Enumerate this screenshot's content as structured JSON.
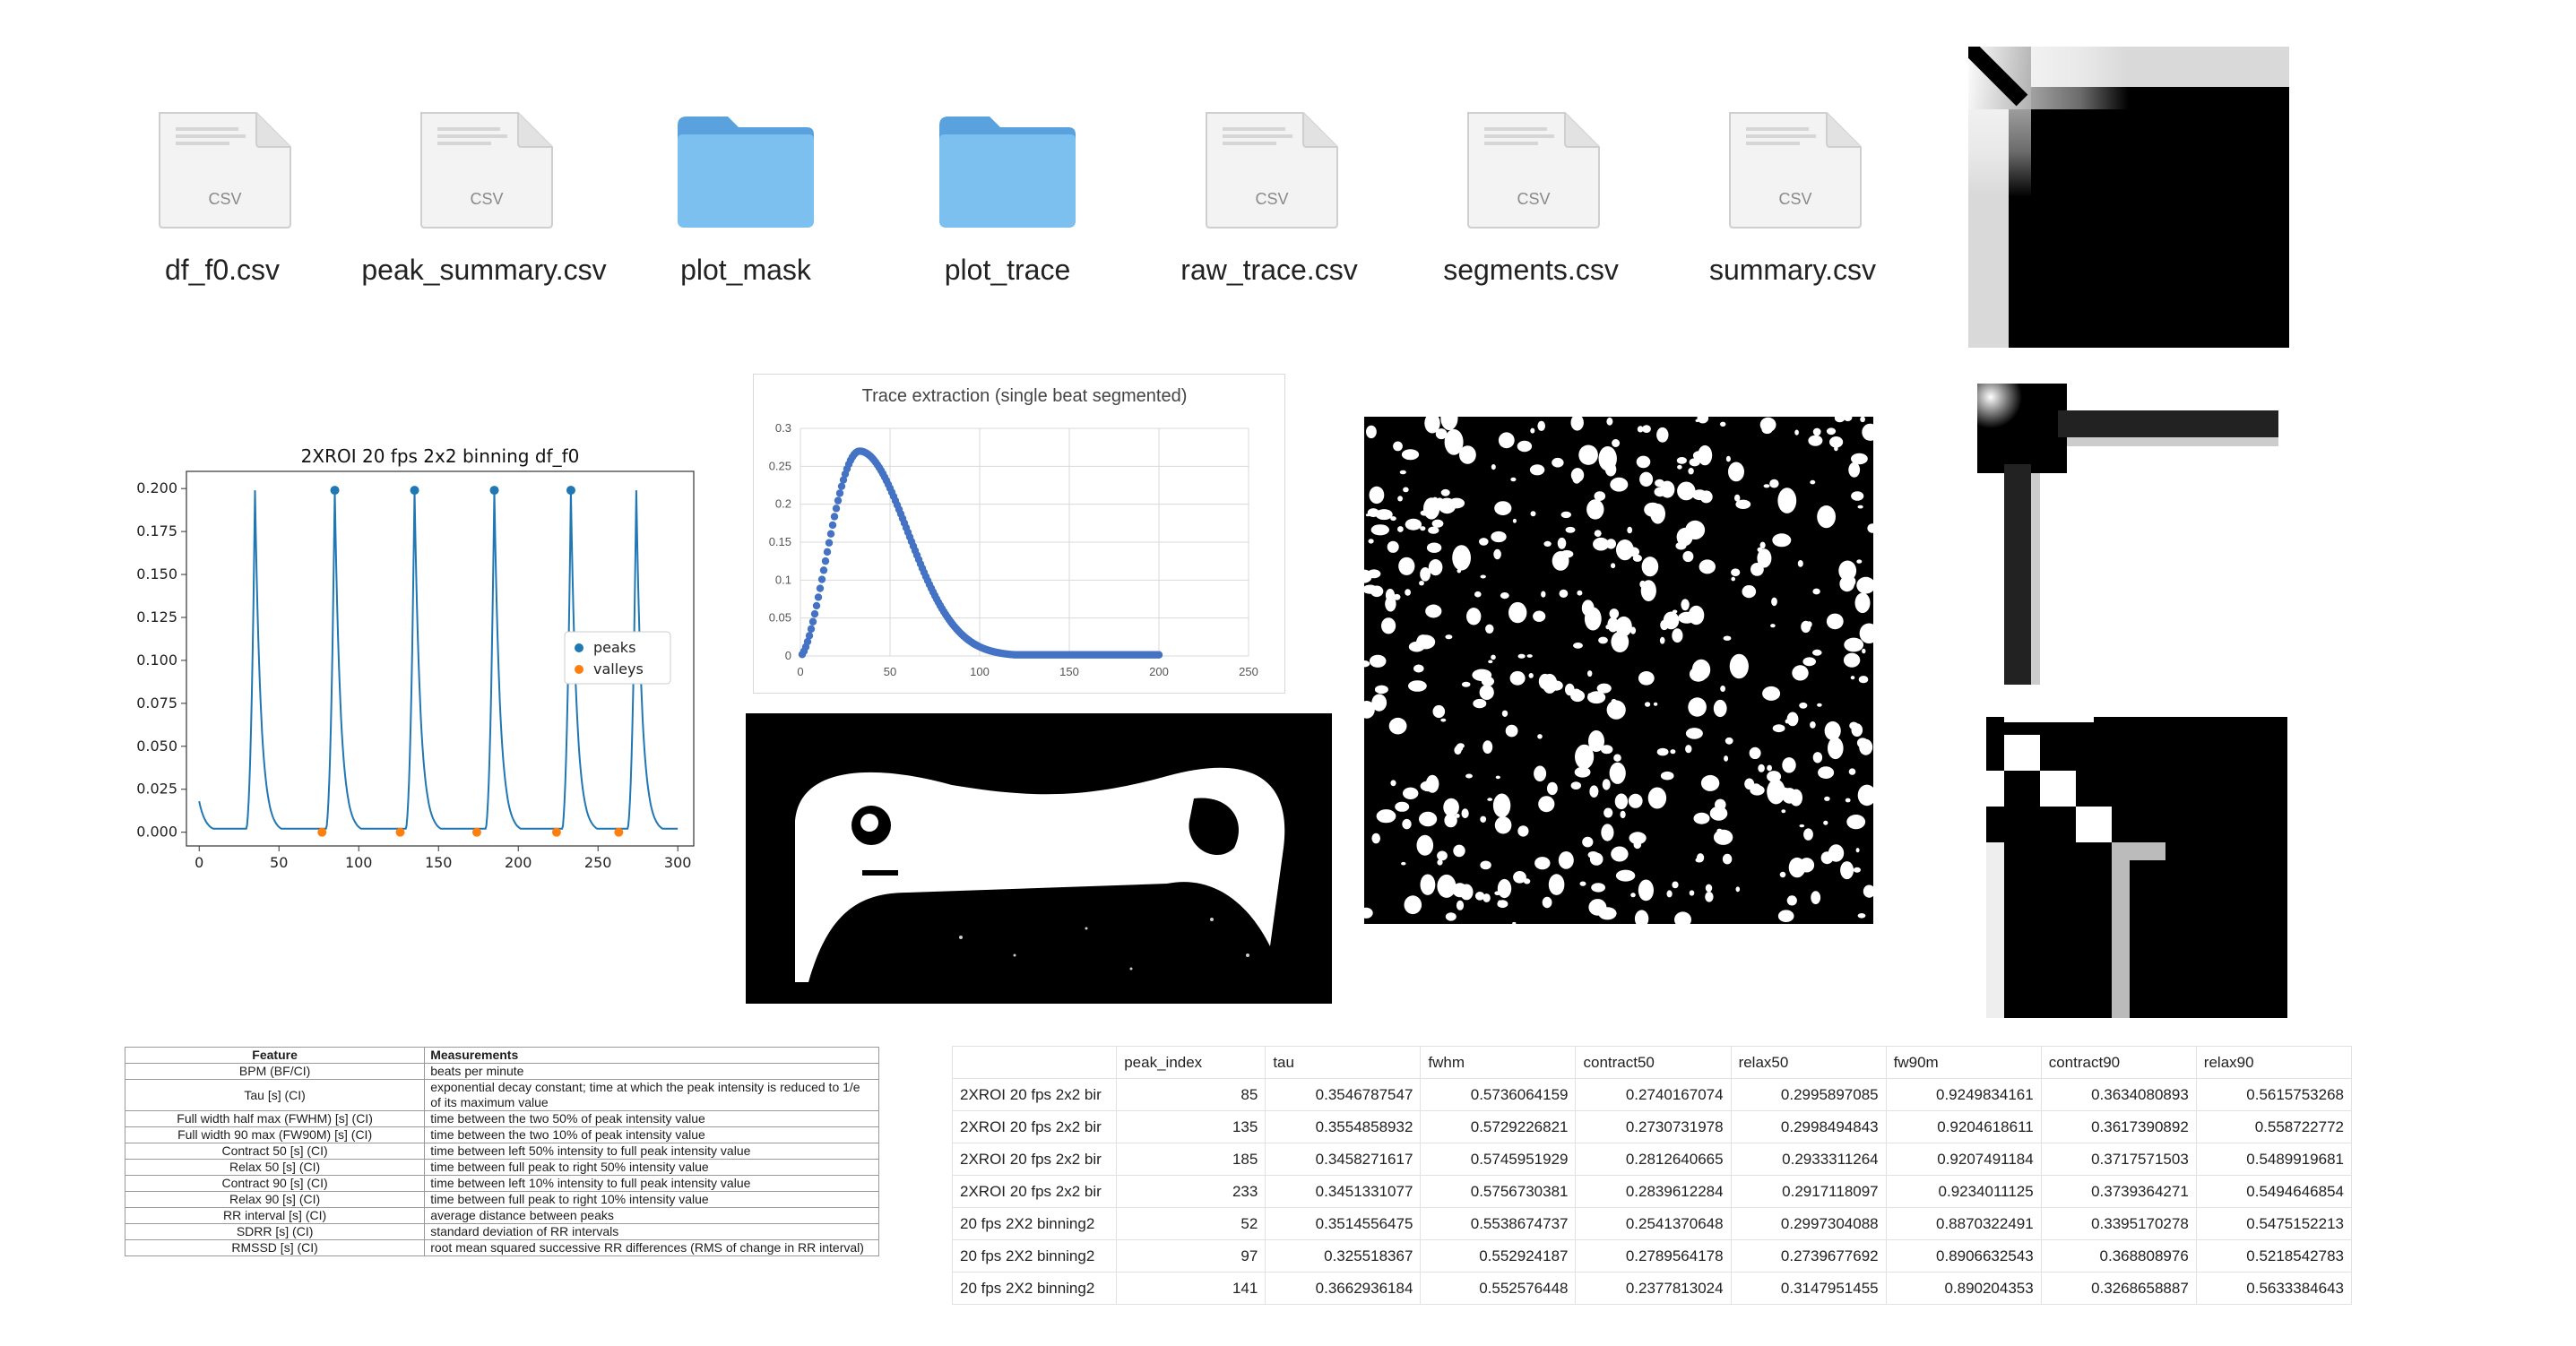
{
  "files": [
    {
      "name": "df_f0.csv",
      "kind": "csv",
      "badge": "CSV"
    },
    {
      "name": "peak_summary.csv",
      "kind": "csv",
      "badge": "CSV"
    },
    {
      "name": "plot_mask",
      "kind": "folder",
      "badge": ""
    },
    {
      "name": "plot_trace",
      "kind": "folder",
      "badge": ""
    },
    {
      "name": "raw_trace.csv",
      "kind": "csv",
      "badge": "CSV"
    },
    {
      "name": "segments.csv",
      "kind": "csv",
      "badge": "CSV"
    },
    {
      "name": "summary.csv",
      "kind": "csv",
      "badge": "CSV"
    }
  ],
  "chart_data": [
    {
      "type": "line",
      "title": "2XROI 20 fps 2x2 binning df_f0",
      "xlabel": "",
      "ylabel": "",
      "xlim": [
        -8,
        310
      ],
      "ylim": [
        -0.008,
        0.21
      ],
      "xticks": [
        "0",
        "50",
        "100",
        "150",
        "200",
        "250",
        "300"
      ],
      "yticks": [
        "0.000",
        "0.025",
        "0.050",
        "0.075",
        "0.100",
        "0.125",
        "0.150",
        "0.175",
        "0.200"
      ],
      "peak_times": [
        35,
        85,
        135,
        185,
        233,
        274
      ],
      "series": [
        {
          "name": "peaks",
          "x": [
            85,
            135,
            185,
            233
          ],
          "y": [
            0.199,
            0.199,
            0.199,
            0.199
          ]
        },
        {
          "name": "valleys",
          "x": [
            77,
            126,
            174,
            224,
            263
          ],
          "y": [
            0.0,
            0.0,
            0.0,
            0.0,
            0.0
          ]
        }
      ],
      "legend": "right",
      "colors": {
        "line": "#1f77b4",
        "peaks": "#1f77b4",
        "valleys": "#ff7f0e"
      }
    },
    {
      "type": "scatter",
      "title": "Trace extraction (single beat segmented)",
      "xlim": [
        0,
        250
      ],
      "ylim": [
        0,
        0.3
      ],
      "xticks": [
        "0",
        "50",
        "100",
        "150",
        "200",
        "250"
      ],
      "yticks": [
        "0",
        "0.05",
        "0.1",
        "0.15",
        "0.2",
        "0.25",
        "0.3"
      ],
      "n_points": 200,
      "peak_x": 33,
      "peak_y": 0.27,
      "grid": true,
      "colors": {
        "points": "#4472c4"
      }
    }
  ],
  "feature_table": {
    "headers": [
      "Feature",
      "Measurements"
    ],
    "rows": [
      [
        "BPM (BF/CI)",
        "beats per minute"
      ],
      [
        "Tau [s] (CI)",
        "exponential decay constant; time at which the peak intensity is reduced to 1/e of its maximum value"
      ],
      [
        "Full width half max (FWHM) [s] (CI)",
        "time between the two 50% of peak intensity value"
      ],
      [
        "Full width 90 max (FW90M) [s] (CI)",
        "time between the two 10% of peak intensity value"
      ],
      [
        "Contract 50 [s] (CI)",
        "time between left 50% intensity to full peak intensity value"
      ],
      [
        "Relax 50 [s] (CI)",
        "time between full peak to right 50% intensity value"
      ],
      [
        "Contract 90 [s] (CI)",
        "time between left 10% intensity to full peak intensity value"
      ],
      [
        "Relax 90 [s] (CI)",
        "time between full peak to right 10% intensity value"
      ],
      [
        "RR interval [s] (CI)",
        "average distance between peaks"
      ],
      [
        "SDRR [s] (CI)",
        "standard deviation of RR intervals"
      ],
      [
        "RMSSD [s] (CI)",
        "root mean squared successive RR differences (RMS of change in RR interval)"
      ]
    ]
  },
  "sheet": {
    "headers": [
      "",
      "peak_index",
      "tau",
      "fwhm",
      "contract50",
      "relax50",
      "fw90m",
      "contract90",
      "relax90"
    ],
    "rows": [
      [
        "2XROI 20 fps 2x2 bir",
        "85",
        "0.3546787547",
        "0.5736064159",
        "0.2740167074",
        "0.2995897085",
        "0.9249834161",
        "0.3634080893",
        "0.5615753268"
      ],
      [
        "2XROI 20 fps 2x2 bir",
        "135",
        "0.3554858932",
        "0.5729226821",
        "0.2730731978",
        "0.2998494843",
        "0.9204618611",
        "0.3617390892",
        "0.558722772"
      ],
      [
        "2XROI 20 fps 2x2 bir",
        "185",
        "0.3458271617",
        "0.5745951929",
        "0.2812640665",
        "0.2933311264",
        "0.9207491184",
        "0.3717571503",
        "0.5489919681"
      ],
      [
        "2XROI 20 fps 2x2 bir",
        "233",
        "0.3451331077",
        "0.5756730381",
        "0.2839612284",
        "0.2917118097",
        "0.9234011125",
        "0.3739364271",
        "0.5494646854"
      ],
      [
        "20 fps 2X2 binning2",
        "52",
        "0.3514556475",
        "0.5538674737",
        "0.2541370648",
        "0.2997304088",
        "0.8870322491",
        "0.3395170278",
        "0.5475152213"
      ],
      [
        "20 fps 2X2 binning2",
        "97",
        "0.325518367",
        "0.552924187",
        "0.2789564178",
        "0.2739677692",
        "0.8906632543",
        "0.368808976",
        "0.5218542783"
      ],
      [
        "20 fps 2X2 binning2",
        "141",
        "0.3662936184",
        "0.552576448",
        "0.2377813024",
        "0.3147951455",
        "0.890204353",
        "0.3268658887",
        "0.5633384643"
      ]
    ]
  }
}
